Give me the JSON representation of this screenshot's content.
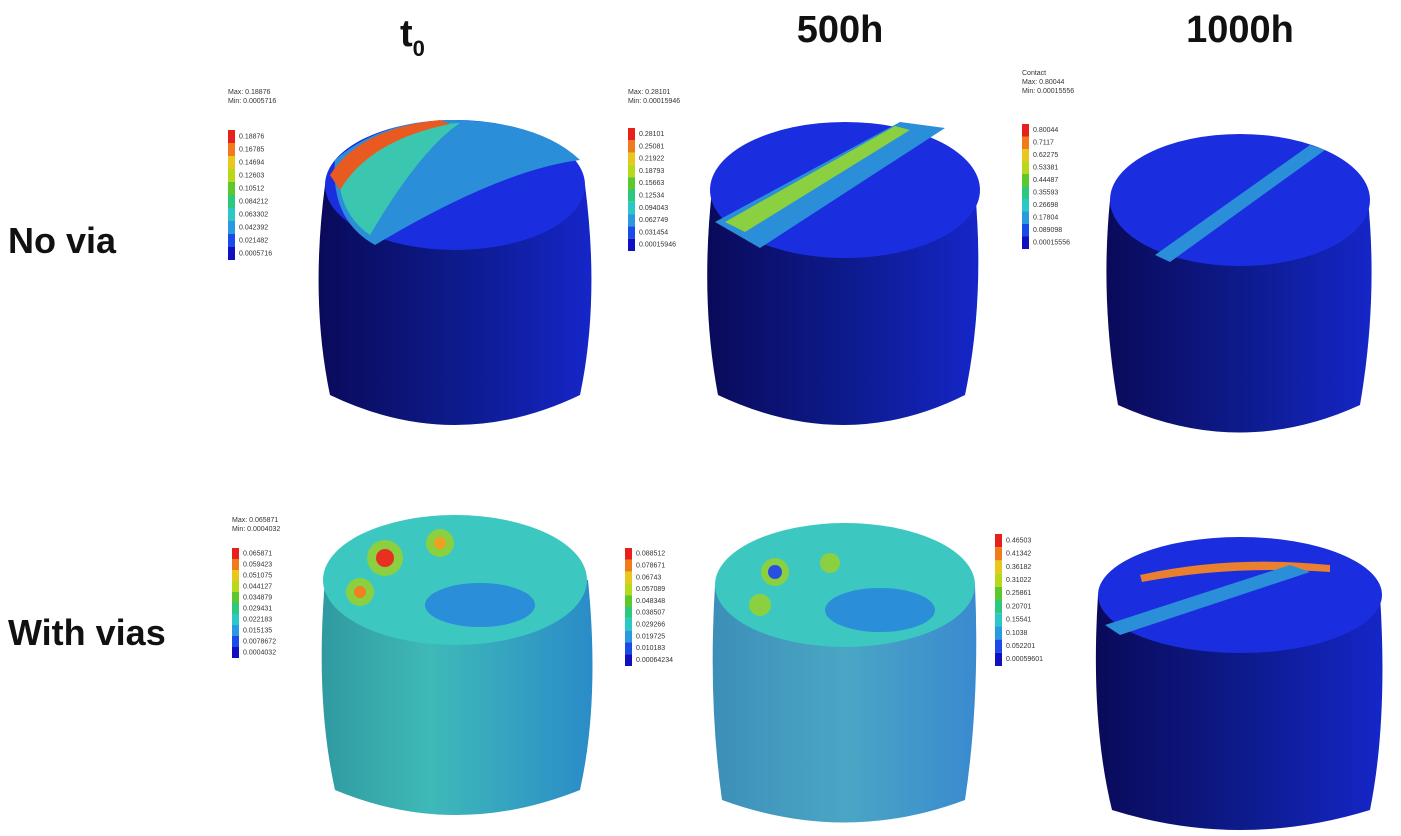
{
  "headers": [
    {
      "text": "t",
      "subscript": "0"
    },
    {
      "text": "500h"
    },
    {
      "text": "1000h"
    }
  ],
  "rows": [
    "No via",
    "With vias"
  ],
  "panels": [
    {
      "max_label": "Max: 0.18876",
      "min_label": "Min: 0.0005716",
      "legend": [
        "0.18876",
        "0.16785",
        "0.14694",
        "0.12603",
        "0.10512",
        "0.084212",
        "0.063302",
        "0.042392",
        "0.021482",
        "0.0005716"
      ]
    },
    {
      "max_label": "Max: 0.28101",
      "min_label": "Min: 0.00015946",
      "legend": [
        "0.28101",
        "0.25081",
        "0.21922",
        "0.18793",
        "0.15663",
        "0.12534",
        "0.094043",
        "0.062749",
        "0.031454",
        "0.00015946"
      ]
    },
    {
      "title": "Contact",
      "max_label": "Max: 0.80044",
      "min_label": "Min: 0.00015556",
      "legend": [
        "0.80044",
        "0.7117",
        "0.62275",
        "0.53381",
        "0.44487",
        "0.35593",
        "0.26698",
        "0.17804",
        "0.089098",
        "0.00015556"
      ]
    },
    {
      "max_label": "Max: 0.065871",
      "min_label": "Min: 0.0004032",
      "legend": [
        "0.065871",
        "0.059423",
        "0.051075",
        "0.044127",
        "0.034879",
        "0.029431",
        "0.022183",
        "0.015135",
        "0.0078672",
        "0.0004032"
      ]
    },
    {
      "legend": [
        "0.088512",
        "0.078671",
        "0.06743",
        "0.057089",
        "0.048348",
        "0.038507",
        "0.029266",
        "0.019725",
        "0.010183",
        "0.00064234"
      ]
    },
    {
      "legend": [
        "0.46503",
        "0.41342",
        "0.36182",
        "0.31022",
        "0.25861",
        "0.20701",
        "0.15541",
        "0.1038",
        "0.052201",
        "0.00059601"
      ]
    }
  ]
}
